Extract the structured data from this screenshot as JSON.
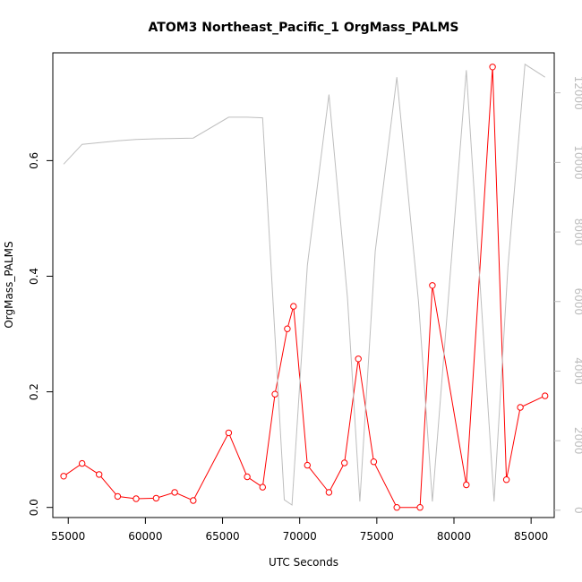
{
  "chart_data": {
    "type": "line",
    "title": "ATOM3 Northeast_Pacific_1 OrgMass_PALMS",
    "xlabel": "UTC Seconds",
    "ylabel": "OrgMass_PALMS",
    "xlim": [
      54000,
      86500
    ],
    "ylim": [
      -0.0175,
      0.7865
    ],
    "y2lim": [
      -210,
      13150
    ],
    "x_ticks": [
      55000,
      60000,
      65000,
      70000,
      75000,
      80000,
      85000
    ],
    "x_tick_labels": [
      "55000",
      "60000",
      "65000",
      "70000",
      "75000",
      "80000",
      "85000"
    ],
    "y_ticks": [
      0.0,
      0.2,
      0.4,
      0.6
    ],
    "y_tick_labels": [
      "0.0",
      "0.2",
      "0.4",
      "0.6"
    ],
    "y2_ticks": [
      0,
      2000,
      4000,
      6000,
      8000,
      10000,
      12000
    ],
    "y2_tick_labels": [
      "0",
      "2000",
      "4000",
      "6000",
      "8000",
      "10000",
      "12000"
    ],
    "grid": false,
    "series": [
      {
        "axis": "left",
        "color": "#ff0000",
        "marker": "open-circle",
        "x": [
          54700,
          55900,
          57000,
          58200,
          59400,
          60700,
          61900,
          63100,
          65400,
          66600,
          67600,
          68400,
          69200,
          69600,
          70500,
          71900,
          72900,
          73800,
          74800,
          76300,
          77800,
          78600,
          80800,
          82500,
          83400,
          84300,
          85900
        ],
        "values": [
          0.054,
          0.076,
          0.057,
          0.019,
          0.015,
          0.016,
          0.026,
          0.012,
          0.129,
          0.053,
          0.035,
          0.196,
          0.309,
          0.348,
          0.073,
          0.026,
          0.077,
          0.257,
          0.079,
          0.0,
          0.0,
          0.384,
          0.039,
          0.762,
          0.048,
          0.173,
          0.193
        ]
      },
      {
        "axis": "right",
        "color": "#bebebe",
        "marker": "none",
        "x": [
          54700,
          55900,
          58200,
          59400,
          60700,
          61900,
          63100,
          65400,
          66600,
          67600,
          69000,
          69500,
          70500,
          71900,
          73100,
          73900,
          74900,
          76300,
          77700,
          78600,
          80800,
          82600,
          83500,
          84600,
          85900
        ],
        "values": [
          9950,
          10520,
          10620,
          10660,
          10680,
          10690,
          10700,
          11300,
          11300,
          11280,
          300,
          150,
          7050,
          11950,
          6100,
          250,
          7450,
          12450,
          6000,
          250,
          12650,
          250,
          7000,
          12820,
          12450
        ]
      }
    ]
  }
}
